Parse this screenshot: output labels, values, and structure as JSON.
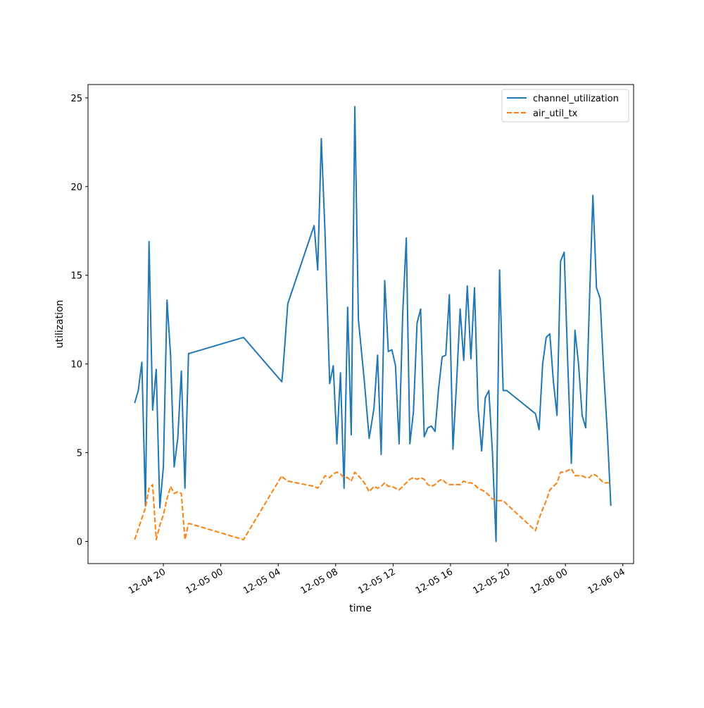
{
  "chart_data": {
    "type": "line",
    "title": "",
    "xlabel": "time",
    "ylabel": "utilization",
    "xlim": [
      "2024-12-04 14:45",
      "2024-12-06 04:45"
    ],
    "ylim": [
      -1.25,
      25.75
    ],
    "y_ticks": [
      0,
      5,
      10,
      15,
      20,
      25
    ],
    "x_ticks": [
      {
        "t": "2024-12-04 20:00",
        "label": "12-04 20"
      },
      {
        "t": "2024-12-05 00:00",
        "label": "12-05 00"
      },
      {
        "t": "2024-12-05 04:00",
        "label": "12-05 04"
      },
      {
        "t": "2024-12-05 08:00",
        "label": "12-05 08"
      },
      {
        "t": "2024-12-05 12:00",
        "label": "12-05 12"
      },
      {
        "t": "2024-12-05 16:00",
        "label": "12-05 16"
      },
      {
        "t": "2024-12-05 20:00",
        "label": "12-05 20"
      },
      {
        "t": "2024-12-06 00:00",
        "label": "12-06 00"
      },
      {
        "t": "2024-12-06 04:00",
        "label": "12-06 04"
      }
    ],
    "grid": false,
    "legend_position": "top-right",
    "series": [
      {
        "name": "channel_utilization",
        "color": "#1f77b4",
        "dash": "solid",
        "x": [
          "2024-12-04 18:00",
          "2024-12-04 18:15",
          "2024-12-04 18:30",
          "2024-12-04 18:45",
          "2024-12-04 19:00",
          "2024-12-04 19:15",
          "2024-12-04 19:30",
          "2024-12-04 19:45",
          "2024-12-04 20:00",
          "2024-12-04 20:15",
          "2024-12-04 20:30",
          "2024-12-04 20:45",
          "2024-12-04 21:00",
          "2024-12-04 21:15",
          "2024-12-04 21:30",
          "2024-12-04 21:45",
          "2024-12-04 21:50",
          "2024-12-05 01:35",
          "2024-12-05 04:15",
          "2024-12-05 04:20",
          "2024-12-05 04:40",
          "2024-12-05 06:30",
          "2024-12-05 06:45",
          "2024-12-05 07:00",
          "2024-12-05 07:15",
          "2024-12-05 07:35",
          "2024-12-05 07:50",
          "2024-12-05 08:05",
          "2024-12-05 08:20",
          "2024-12-05 08:35",
          "2024-12-05 08:50",
          "2024-12-05 09:05",
          "2024-12-05 09:20",
          "2024-12-05 09:35",
          "2024-12-05 10:00",
          "2024-12-05 10:20",
          "2024-12-05 10:40",
          "2024-12-05 10:55",
          "2024-12-05 11:10",
          "2024-12-05 11:25",
          "2024-12-05 11:40",
          "2024-12-05 11:55",
          "2024-12-05 12:10",
          "2024-12-05 12:25",
          "2024-12-05 12:40",
          "2024-12-05 12:55",
          "2024-12-05 13:10",
          "2024-12-05 13:25",
          "2024-12-05 13:40",
          "2024-12-05 13:55",
          "2024-12-05 14:10",
          "2024-12-05 14:25",
          "2024-12-05 14:40",
          "2024-12-05 14:55",
          "2024-12-05 15:10",
          "2024-12-05 15:25",
          "2024-12-05 15:40",
          "2024-12-05 15:55",
          "2024-12-05 16:10",
          "2024-12-05 16:25",
          "2024-12-05 16:40",
          "2024-12-05 16:55",
          "2024-12-05 17:10",
          "2024-12-05 17:25",
          "2024-12-05 17:40",
          "2024-12-05 17:55",
          "2024-12-05 18:10",
          "2024-12-05 18:25",
          "2024-12-05 18:40",
          "2024-12-05 18:55",
          "2024-12-05 19:10",
          "2024-12-05 19:25",
          "2024-12-05 19:40",
          "2024-12-05 19:55",
          "2024-12-05 21:55",
          "2024-12-05 22:10",
          "2024-12-05 22:25",
          "2024-12-05 22:40",
          "2024-12-05 22:55",
          "2024-12-05 23:10",
          "2024-12-05 23:25",
          "2024-12-05 23:40",
          "2024-12-05 23:55",
          "2024-12-06 00:10",
          "2024-12-06 00:25",
          "2024-12-06 00:40",
          "2024-12-06 00:55",
          "2024-12-06 01:10",
          "2024-12-06 01:25",
          "2024-12-06 01:40",
          "2024-12-06 01:55",
          "2024-12-06 02:10",
          "2024-12-06 02:25",
          "2024-12-06 02:40",
          "2024-12-06 02:55",
          "2024-12-06 03:10"
        ],
        "y": [
          7.8,
          8.5,
          10.1,
          2.0,
          16.9,
          7.4,
          9.7,
          1.9,
          4.2,
          13.6,
          10.5,
          4.2,
          5.8,
          9.6,
          3.0,
          10.6,
          10.6,
          11.5,
          9.0,
          9.7,
          13.4,
          17.8,
          15.3,
          22.7,
          17.6,
          8.9,
          9.9,
          5.5,
          9.5,
          3.0,
          13.2,
          6.0,
          24.5,
          12.5,
          9.0,
          5.8,
          7.5,
          10.5,
          4.9,
          14.7,
          10.7,
          10.8,
          9.9,
          5.5,
          12.8,
          17.1,
          5.5,
          7.3,
          12.3,
          13.1,
          5.9,
          6.4,
          6.5,
          6.2,
          8.6,
          10.4,
          10.5,
          13.9,
          5.2,
          8.9,
          13.1,
          10.2,
          14.4,
          10.3,
          14.3,
          7.5,
          5.1,
          8.1,
          8.5,
          5.0,
          0.0,
          15.3,
          8.5,
          8.5,
          7.2,
          6.3,
          10.0,
          11.5,
          11.7,
          9.0,
          7.1,
          15.8,
          16.3,
          10.0,
          4.4,
          11.9,
          10.0,
          7.1,
          6.4,
          13.3,
          19.5,
          14.3,
          13.7,
          9.6,
          6.2,
          2.0
        ]
      },
      {
        "name": "air_util_tx",
        "color": "#ff7f0e",
        "dash": "dashed",
        "x": [
          "2024-12-04 18:00",
          "2024-12-04 18:15",
          "2024-12-04 18:30",
          "2024-12-04 18:45",
          "2024-12-04 19:00",
          "2024-12-04 19:15",
          "2024-12-04 19:30",
          "2024-12-04 19:45",
          "2024-12-04 20:00",
          "2024-12-04 20:15",
          "2024-12-04 20:30",
          "2024-12-04 20:45",
          "2024-12-04 21:00",
          "2024-12-04 21:15",
          "2024-12-04 21:30",
          "2024-12-04 21:45",
          "2024-12-04 21:50",
          "2024-12-05 01:35",
          "2024-12-05 04:15",
          "2024-12-05 04:20",
          "2024-12-05 04:40",
          "2024-12-05 06:30",
          "2024-12-05 06:45",
          "2024-12-05 07:00",
          "2024-12-05 07:15",
          "2024-12-05 07:35",
          "2024-12-05 07:50",
          "2024-12-05 08:05",
          "2024-12-05 08:20",
          "2024-12-05 08:35",
          "2024-12-05 08:50",
          "2024-12-05 09:05",
          "2024-12-05 09:20",
          "2024-12-05 09:35",
          "2024-12-05 10:00",
          "2024-12-05 10:20",
          "2024-12-05 10:40",
          "2024-12-05 10:55",
          "2024-12-05 11:10",
          "2024-12-05 11:25",
          "2024-12-05 11:40",
          "2024-12-05 11:55",
          "2024-12-05 12:10",
          "2024-12-05 12:25",
          "2024-12-05 12:40",
          "2024-12-05 12:55",
          "2024-12-05 13:10",
          "2024-12-05 13:25",
          "2024-12-05 13:40",
          "2024-12-05 13:55",
          "2024-12-05 14:10",
          "2024-12-05 14:25",
          "2024-12-05 14:40",
          "2024-12-05 14:55",
          "2024-12-05 15:10",
          "2024-12-05 15:25",
          "2024-12-05 15:40",
          "2024-12-05 15:55",
          "2024-12-05 16:10",
          "2024-12-05 16:25",
          "2024-12-05 16:40",
          "2024-12-05 16:55",
          "2024-12-05 17:10",
          "2024-12-05 17:25",
          "2024-12-05 17:40",
          "2024-12-05 17:55",
          "2024-12-05 18:10",
          "2024-12-05 18:25",
          "2024-12-05 18:40",
          "2024-12-05 18:55",
          "2024-12-05 19:10",
          "2024-12-05 19:25",
          "2024-12-05 19:40",
          "2024-12-05 19:55",
          "2024-12-05 21:55",
          "2024-12-05 22:10",
          "2024-12-05 22:25",
          "2024-12-05 22:40",
          "2024-12-05 22:55",
          "2024-12-05 23:10",
          "2024-12-05 23:25",
          "2024-12-05 23:40",
          "2024-12-05 23:55",
          "2024-12-06 00:10",
          "2024-12-06 00:25",
          "2024-12-06 00:40",
          "2024-12-06 00:55",
          "2024-12-06 01:10",
          "2024-12-06 01:25",
          "2024-12-06 01:40",
          "2024-12-06 01:55",
          "2024-12-06 02:10",
          "2024-12-06 02:25",
          "2024-12-06 02:40",
          "2024-12-06 02:55",
          "2024-12-06 03:10"
        ],
        "y": [
          0.1,
          0.7,
          1.3,
          1.9,
          3.0,
          3.2,
          0.1,
          0.9,
          1.5,
          2.4,
          3.1,
          2.7,
          2.8,
          2.7,
          0.1,
          1.0,
          1.0,
          0.1,
          3.7,
          3.6,
          3.4,
          3.1,
          3.0,
          3.3,
          3.7,
          3.6,
          3.8,
          3.9,
          3.8,
          3.6,
          3.6,
          3.4,
          3.9,
          3.7,
          3.3,
          2.8,
          3.1,
          3.0,
          3.1,
          3.3,
          3.1,
          3.1,
          3.0,
          2.9,
          3.1,
          3.3,
          3.5,
          3.6,
          3.5,
          3.6,
          3.5,
          3.2,
          3.1,
          3.2,
          3.4,
          3.5,
          3.3,
          3.2,
          3.2,
          3.2,
          3.2,
          3.4,
          3.3,
          3.3,
          3.2,
          3.0,
          2.9,
          2.8,
          2.6,
          2.4,
          2.3,
          2.3,
          2.3,
          2.1,
          0.6,
          1.3,
          1.8,
          2.3,
          2.9,
          3.1,
          3.3,
          3.9,
          3.9,
          4.0,
          4.1,
          3.7,
          3.7,
          3.7,
          3.6,
          3.6,
          3.8,
          3.7,
          3.5,
          3.3,
          3.3,
          3.3
        ]
      }
    ]
  }
}
